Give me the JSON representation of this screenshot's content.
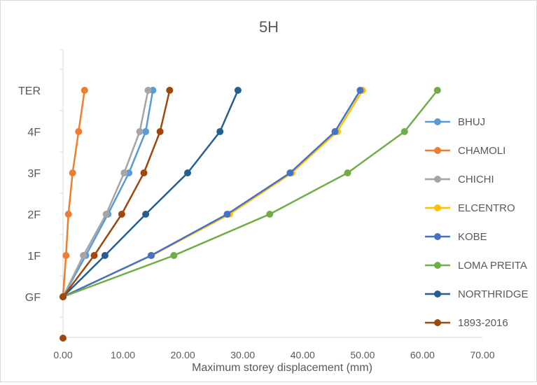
{
  "chart_data": {
    "type": "line",
    "title": "5H",
    "xlabel": "Maximum storey displacement (mm)",
    "ylabel": "",
    "xlim": [
      0,
      70
    ],
    "x_ticks": [
      "0.00",
      "10.00",
      "20.00",
      "30.00",
      "40.00",
      "50.00",
      "60.00",
      "70.00"
    ],
    "categories": [
      "GF",
      "1F",
      "2F",
      "3F",
      "4F",
      "TER"
    ],
    "legend_position": "right",
    "grid": false,
    "series": [
      {
        "name": "BHUJ",
        "color": "#5b9bd5",
        "values": [
          0,
          3.8,
          7.5,
          11.0,
          13.8,
          15.0
        ]
      },
      {
        "name": "CHAMOLI",
        "color": "#ed7d31",
        "values": [
          0,
          0.5,
          0.9,
          1.6,
          2.6,
          3.6
        ]
      },
      {
        "name": "CHICHI",
        "color": "#a5a5a5",
        "values": [
          0,
          3.4,
          7.2,
          10.2,
          12.8,
          14.2
        ]
      },
      {
        "name": "ELCENTRO",
        "color": "#ffc000",
        "values": [
          0,
          14.8,
          27.8,
          38.2,
          45.8,
          50.0
        ]
      },
      {
        "name": "KOBE",
        "color": "#4472c4",
        "values": [
          0,
          14.7,
          27.4,
          37.9,
          45.4,
          49.6
        ]
      },
      {
        "name": "LOMA PREITA",
        "color": "#70ad47",
        "values": [
          0,
          18.5,
          34.5,
          47.5,
          57.0,
          62.5
        ]
      },
      {
        "name": "NORTHRIDGE",
        "color": "#255e91",
        "values": [
          0,
          7.0,
          13.8,
          20.8,
          26.2,
          29.2
        ]
      },
      {
        "name": "1893-2016",
        "color": "#9e480e",
        "values": [
          0,
          5.2,
          9.8,
          13.5,
          16.2,
          17.8
        ]
      }
    ],
    "extra_point": {
      "series": "1893-2016",
      "x": 0,
      "y_index": -1
    }
  }
}
